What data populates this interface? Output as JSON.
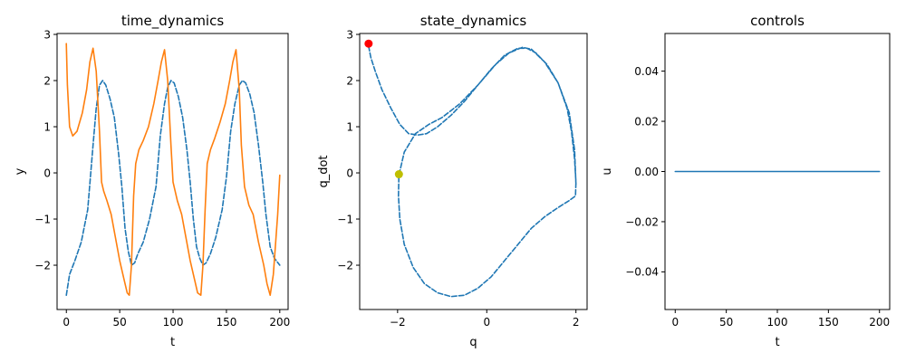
{
  "chart_data": [
    {
      "type": "line",
      "title": "time_dynamics",
      "xlabel": "t",
      "ylabel": "y",
      "xlim": [
        -8.7,
        207.8
      ],
      "ylim": [
        -2.96,
        3.02
      ],
      "xticks": [
        "0",
        "50",
        "100",
        "150",
        "200"
      ],
      "xtick_values": [
        0,
        50,
        100,
        150,
        200
      ],
      "yticks": [
        "−2",
        "−1",
        "0",
        "1",
        "2",
        "3"
      ],
      "ytick_values": [
        -2,
        -1,
        0,
        1,
        2,
        3
      ],
      "grid": false,
      "series": [
        {
          "color": "#1f77b4",
          "style": "dashed",
          "points": [
            [
              0,
              -2.65
            ],
            [
              3,
              -2.2
            ],
            [
              8,
              -1.9
            ],
            [
              14,
              -1.5
            ],
            [
              20,
              -0.8
            ],
            [
              25,
              0.6
            ],
            [
              28,
              1.4
            ],
            [
              31,
              1.9
            ],
            [
              34,
              2.0
            ],
            [
              37,
              1.9
            ],
            [
              41,
              1.6
            ],
            [
              45,
              1.2
            ],
            [
              49,
              0.4
            ],
            [
              52,
              -0.3
            ],
            [
              55,
              -1.2
            ],
            [
              58,
              -1.7
            ],
            [
              61,
              -2.0
            ],
            [
              64,
              -1.95
            ],
            [
              67,
              -1.75
            ],
            [
              72,
              -1.5
            ],
            [
              78,
              -1.0
            ],
            [
              84,
              -0.3
            ],
            [
              88,
              0.8
            ],
            [
              92,
              1.5
            ],
            [
              95,
              1.85
            ],
            [
              98,
              2.0
            ],
            [
              101,
              1.95
            ],
            [
              105,
              1.65
            ],
            [
              109,
              1.2
            ],
            [
              113,
              0.5
            ],
            [
              116,
              -0.2
            ],
            [
              119,
              -1.0
            ],
            [
              122,
              -1.6
            ],
            [
              125,
              -1.85
            ],
            [
              128,
              -2.0
            ],
            [
              131,
              -1.95
            ],
            [
              135,
              -1.75
            ],
            [
              140,
              -1.4
            ],
            [
              146,
              -0.8
            ],
            [
              150,
              -0.1
            ],
            [
              154,
              0.9
            ],
            [
              158,
              1.5
            ],
            [
              162,
              1.9
            ],
            [
              165,
              2.0
            ],
            [
              168,
              1.95
            ],
            [
              172,
              1.7
            ],
            [
              176,
              1.3
            ],
            [
              180,
              0.6
            ],
            [
              184,
              -0.2
            ],
            [
              187,
              -0.9
            ],
            [
              191,
              -1.6
            ],
            [
              195,
              -1.85
            ],
            [
              200,
              -2.0
            ]
          ]
        },
        {
          "color": "#ff7f0e",
          "style": "solid",
          "points": [
            [
              0,
              2.8
            ],
            [
              1,
              1.9
            ],
            [
              3,
              1.0
            ],
            [
              6,
              0.8
            ],
            [
              10,
              0.9
            ],
            [
              15,
              1.3
            ],
            [
              19,
              1.8
            ],
            [
              22,
              2.4
            ],
            [
              25,
              2.7
            ],
            [
              28,
              2.2
            ],
            [
              31,
              0.9
            ],
            [
              33,
              -0.2
            ],
            [
              35,
              -0.4
            ],
            [
              38,
              -0.6
            ],
            [
              42,
              -0.9
            ],
            [
              46,
              -1.4
            ],
            [
              50,
              -1.9
            ],
            [
              54,
              -2.3
            ],
            [
              57,
              -2.6
            ],
            [
              59,
              -2.65
            ],
            [
              61,
              -2.0
            ],
            [
              63,
              -0.5
            ],
            [
              65,
              0.2
            ],
            [
              68,
              0.5
            ],
            [
              72,
              0.7
            ],
            [
              77,
              1.0
            ],
            [
              82,
              1.5
            ],
            [
              86,
              2.0
            ],
            [
              89,
              2.4
            ],
            [
              92,
              2.67
            ],
            [
              95,
              2.0
            ],
            [
              98,
              0.6
            ],
            [
              100,
              -0.2
            ],
            [
              104,
              -0.6
            ],
            [
              108,
              -0.9
            ],
            [
              112,
              -1.4
            ],
            [
              116,
              -1.9
            ],
            [
              120,
              -2.3
            ],
            [
              123,
              -2.6
            ],
            [
              126,
              -2.65
            ],
            [
              128,
              -2.0
            ],
            [
              130,
              -0.8
            ],
            [
              132,
              0.2
            ],
            [
              135,
              0.5
            ],
            [
              139,
              0.75
            ],
            [
              144,
              1.1
            ],
            [
              149,
              1.5
            ],
            [
              153,
              2.0
            ],
            [
              156,
              2.4
            ],
            [
              159,
              2.67
            ],
            [
              162,
              1.8
            ],
            [
              164,
              0.6
            ],
            [
              167,
              -0.3
            ],
            [
              171,
              -0.7
            ],
            [
              175,
              -0.9
            ],
            [
              180,
              -1.5
            ],
            [
              185,
              -2.0
            ],
            [
              188,
              -2.4
            ],
            [
              191,
              -2.65
            ],
            [
              194,
              -2.2
            ],
            [
              198,
              -0.9
            ],
            [
              200,
              -0.05
            ]
          ]
        }
      ]
    },
    {
      "type": "line",
      "title": "state_dynamics",
      "xlabel": "q",
      "ylabel": "q_dot",
      "xlim": [
        -2.85,
        2.25
      ],
      "ylim": [
        -2.96,
        3.02
      ],
      "xticks": [
        "−2",
        "0",
        "2"
      ],
      "xtick_values": [
        -2,
        0,
        2
      ],
      "yticks": [
        "−2",
        "−1",
        "0",
        "1",
        "2",
        "3"
      ],
      "ytick_values": [
        -2,
        -1,
        0,
        1,
        2,
        3
      ],
      "grid": false,
      "series": [
        {
          "color": "#1f77b4",
          "style": "dashed",
          "points": [
            [
              -2.65,
              2.75
            ],
            [
              -2.6,
              2.5
            ],
            [
              -2.5,
              2.2
            ],
            [
              -2.35,
              1.8
            ],
            [
              -2.15,
              1.4
            ],
            [
              -1.95,
              1.05
            ],
            [
              -1.75,
              0.85
            ],
            [
              -1.55,
              0.82
            ],
            [
              -1.35,
              0.85
            ],
            [
              -1.1,
              1.0
            ],
            [
              -0.8,
              1.25
            ],
            [
              -0.5,
              1.55
            ],
            [
              -0.2,
              1.9
            ],
            [
              0.1,
              2.25
            ],
            [
              0.4,
              2.55
            ],
            [
              0.7,
              2.7
            ],
            [
              0.9,
              2.7
            ],
            [
              1.1,
              2.6
            ],
            [
              1.35,
              2.35
            ],
            [
              1.6,
              1.95
            ],
            [
              1.8,
              1.4
            ],
            [
              1.9,
              0.9
            ],
            [
              1.97,
              0.3
            ],
            [
              2.0,
              -0.2
            ],
            [
              1.99,
              -0.5
            ],
            [
              1.85,
              -0.6
            ],
            [
              1.6,
              -0.75
            ],
            [
              1.3,
              -0.95
            ],
            [
              1.0,
              -1.2
            ],
            [
              0.7,
              -1.55
            ],
            [
              0.4,
              -1.9
            ],
            [
              0.1,
              -2.25
            ],
            [
              -0.2,
              -2.5
            ],
            [
              -0.5,
              -2.65
            ],
            [
              -0.8,
              -2.68
            ],
            [
              -1.1,
              -2.6
            ],
            [
              -1.4,
              -2.4
            ],
            [
              -1.65,
              -2.05
            ],
            [
              -1.85,
              -1.55
            ],
            [
              -1.95,
              -1.0
            ],
            [
              -1.98,
              -0.5
            ],
            [
              -1.97,
              -0.05
            ],
            [
              -1.85,
              0.45
            ],
            [
              -1.6,
              0.85
            ],
            [
              -1.3,
              1.05
            ],
            [
              -1.0,
              1.2
            ],
            [
              -0.6,
              1.5
            ],
            [
              -0.2,
              1.9
            ],
            [
              0.2,
              2.35
            ],
            [
              0.5,
              2.6
            ],
            [
              0.8,
              2.72
            ],
            [
              1.0,
              2.68
            ],
            [
              1.3,
              2.4
            ],
            [
              1.6,
              1.95
            ],
            [
              1.85,
              1.3
            ],
            [
              1.97,
              0.5
            ],
            [
              2.0,
              -0.25
            ]
          ]
        },
        {
          "color": "#ff0000",
          "style": "marker",
          "points": [
            [
              -2.65,
              2.8
            ]
          ]
        },
        {
          "color": "#bfbf00",
          "style": "marker",
          "points": [
            [
              -1.97,
              -0.03
            ]
          ]
        }
      ]
    },
    {
      "type": "line",
      "title": "controls",
      "xlabel": "t",
      "ylabel": "u",
      "xlim": [
        -10,
        210
      ],
      "ylim": [
        -0.055,
        0.055
      ],
      "xticks": [
        "0",
        "50",
        "100",
        "150",
        "200"
      ],
      "xtick_values": [
        0,
        50,
        100,
        150,
        200
      ],
      "yticks": [
        "−0.04",
        "−0.02",
        "0.00",
        "0.02",
        "0.04"
      ],
      "ytick_values": [
        -0.04,
        -0.02,
        0,
        0.02,
        0.04
      ],
      "grid": false,
      "series": [
        {
          "color": "#1f77b4",
          "style": "solid",
          "points": [
            [
              0,
              0
            ],
            [
              200,
              0
            ]
          ]
        }
      ]
    }
  ]
}
